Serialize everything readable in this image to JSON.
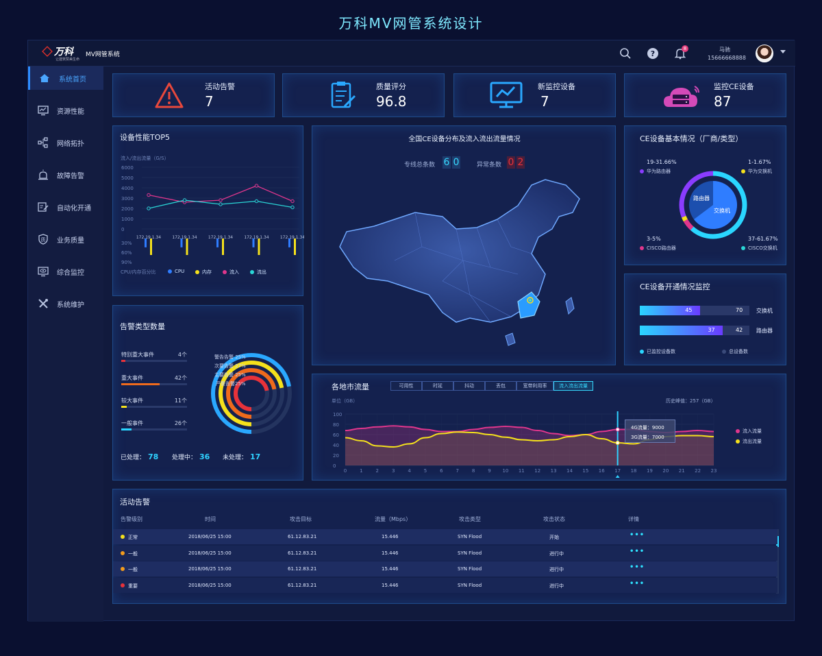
{
  "page_title": "万科MV网管系统设计",
  "header": {
    "logo_text": "万科",
    "logo_sub": "让建筑赞美生命",
    "app_name": "MV网管系统",
    "search_icon": "search-icon",
    "help_icon": "help-icon",
    "bell_icon": "bell-icon",
    "bell_badge": "8",
    "user_name": "马驰",
    "user_phone": "15666668888"
  },
  "sidebar": {
    "items": [
      {
        "label": "系统首页",
        "icon": "home-icon"
      },
      {
        "label": "资源性能",
        "icon": "monitor-icon"
      },
      {
        "label": "网络拓扑",
        "icon": "topology-icon"
      },
      {
        "label": "故障告警",
        "icon": "alarm-icon"
      },
      {
        "label": "自动化开通",
        "icon": "edit-icon"
      },
      {
        "label": "业务质量",
        "icon": "shield-icon"
      },
      {
        "label": "综合监控",
        "icon": "eye-monitor-icon"
      },
      {
        "label": "系统维护",
        "icon": "tools-icon"
      }
    ]
  },
  "kpis": [
    {
      "label": "活动告警",
      "value": "7",
      "icon": "warning-icon",
      "color": "#e8483c"
    },
    {
      "label": "质量评分",
      "value": "96.8",
      "icon": "clipboard-icon",
      "color": "#2aa8ff"
    },
    {
      "label": "新监控设备",
      "value": "7",
      "icon": "monitor-chart-icon",
      "color": "#2aa8ff"
    },
    {
      "label": "监控CE设备",
      "value": "87",
      "icon": "cloud-server-icon",
      "color": "#d44ab8"
    }
  ],
  "perf_top5": {
    "title": "设备性能TOP5",
    "unit_label": "流入/流出流量（G/S）",
    "cpu_axis_label": "CPU/内存百分比",
    "legend": [
      "CPU",
      "内存",
      "流入",
      "流出"
    ],
    "legend_colors": [
      "#2f7dff",
      "#f5e11c",
      "#e0368c",
      "#2ad6d6"
    ],
    "chart_data": {
      "type": "line",
      "categories": [
        "172.19.1.34",
        "172.19.1.34",
        "172.19.1.34",
        "172.19.1.34",
        "172.19.1.34"
      ],
      "ylim": [
        0,
        6000
      ],
      "yticks": [
        "6000",
        "5000",
        "4000",
        "3000",
        "2000",
        "1000",
        "0"
      ],
      "pct_ticks": [
        "30%",
        "60%",
        "90%"
      ],
      "series": [
        {
          "name": "流入",
          "values": [
            3300,
            2600,
            2800,
            4200,
            2700
          ]
        },
        {
          "name": "流出",
          "values": [
            2000,
            2800,
            2400,
            2700,
            2100
          ]
        }
      ],
      "bars": [
        {
          "name": "CPU",
          "values": [
            0.4,
            0.4,
            0.4,
            0.4,
            0.4
          ]
        },
        {
          "name": "内存",
          "values": [
            0.75,
            0.75,
            0.75,
            0.75,
            0.75
          ]
        }
      ]
    }
  },
  "alarm_types": {
    "title": "告警类型数量",
    "rows": [
      {
        "label": "特别重大事件",
        "count": "4个",
        "value": 0.06,
        "color": "#e8323a"
      },
      {
        "label": "重大事件",
        "count": "42个",
        "value": 0.58,
        "color": "#ef6a1c"
      },
      {
        "label": "较大事件",
        "count": "11个",
        "value": 0.08,
        "color": "#f5e11c"
      },
      {
        "label": "一般事件",
        "count": "26个",
        "value": 0.16,
        "color": "#2ad6ff"
      }
    ],
    "ring_labels": [
      "警告告警 25%",
      "次要告警 27%",
      "主要告警 25%",
      "严重告警25%"
    ],
    "ring_colors": [
      "#2aa8ff",
      "#f5e11c",
      "#ef6a1c",
      "#e8323a"
    ],
    "ring_values": [
      0.25,
      0.27,
      0.25,
      0.25
    ],
    "stats": [
      {
        "label": "已处理：",
        "value": "78"
      },
      {
        "label": "处理中：",
        "value": "36"
      },
      {
        "label": "未处理：",
        "value": "17"
      }
    ]
  },
  "map": {
    "title": "全国CE设备分布及流入流出流量情况",
    "line_count_label": "专线总条数",
    "line_count": [
      "6",
      "0"
    ],
    "abnormal_label": "异常条数",
    "abnormal_count": [
      "0",
      "2"
    ]
  },
  "ce_basic": {
    "title": "CE设备基本情况（厂商/类型）",
    "labels": [
      {
        "value": "19-31.66%",
        "name": "华为路由器",
        "color": "#8a3cff"
      },
      {
        "value": "1-1.67%",
        "name": "华为交换机",
        "color": "#f5e11c"
      },
      {
        "value": "3-5%",
        "name": "CISCO路由器",
        "color": "#e0368c"
      },
      {
        "value": "37-61.67%",
        "name": "CISCO交换机",
        "color": "#2ad6d6"
      }
    ],
    "inner_labels": [
      "路由器",
      "交换机"
    ]
  },
  "ce_open": {
    "title": "CE设备开通情况监控",
    "rows": [
      {
        "name": "交换机",
        "open": "45",
        "total": "70",
        "value": 0.64
      },
      {
        "name": "路由器",
        "open": "37",
        "total": "42",
        "value": 0.88
      }
    ],
    "legend": [
      "已监控设备数",
      "总设备数"
    ]
  },
  "traffic": {
    "title": "各地市流量",
    "tabs": [
      "可用性",
      "时延",
      "抖动",
      "丢包",
      "宽带利用率",
      "流入流出流量"
    ],
    "active_tab": 5,
    "unit": "单位（GB）",
    "peak": "历史峰值：257（GB）",
    "tooltip": [
      "4G流量：9000",
      "3G流量：7000"
    ],
    "legend": [
      "流入流量",
      "流出流量"
    ],
    "chart_data": {
      "type": "line",
      "x": [
        "0",
        "1",
        "2",
        "3",
        "4",
        "5",
        "6",
        "7",
        "8",
        "9",
        "10",
        "11",
        "12",
        "13",
        "14",
        "15",
        "16",
        "17",
        "18",
        "19",
        "20",
        "21",
        "22",
        "23"
      ],
      "ylim": [
        0,
        100
      ],
      "yticks": [
        "100",
        "80",
        "60",
        "40",
        "20",
        "0"
      ],
      "series": [
        {
          "name": "流入流量",
          "values": [
            68,
            72,
            75,
            77,
            75,
            70,
            66,
            66,
            70,
            74,
            76,
            74,
            68,
            62,
            58,
            60,
            66,
            70,
            70,
            66,
            64,
            66,
            68,
            66
          ]
        },
        {
          "name": "流出流量",
          "values": [
            54,
            48,
            38,
            36,
            42,
            54,
            62,
            65,
            64,
            60,
            55,
            50,
            48,
            50,
            56,
            60,
            52,
            44,
            42,
            50,
            56,
            58,
            58,
            56
          ]
        }
      ],
      "highlight_x": 17
    }
  },
  "active_alarms": {
    "title": "活动告警",
    "headers": [
      "告警级别",
      "时间",
      "攻击目标",
      "流量（Mbps）",
      "攻击类型",
      "攻击状态",
      "详情"
    ],
    "rows": [
      {
        "level": "正常",
        "color": "#f5e11c",
        "time": "2018/06/25 15:00",
        "target": "61.12.83.21",
        "flow": "15.446",
        "type": "SYN Flood",
        "status": "开始",
        "detail": "•••"
      },
      {
        "level": "一般",
        "color": "#f39c1c",
        "time": "2018/06/25 15:00",
        "target": "61.12.83.21",
        "flow": "15.446",
        "type": "SYN Flood",
        "status": "进行中",
        "detail": "•••"
      },
      {
        "level": "一般",
        "color": "#f39c1c",
        "time": "2018/06/25 15:00",
        "target": "61.12.83.21",
        "flow": "15.446",
        "type": "SYN Flood",
        "status": "进行中",
        "detail": "•••"
      },
      {
        "level": "重要",
        "color": "#e8323a",
        "time": "2018/06/25 15:00",
        "target": "61.12.83.21",
        "flow": "15.446",
        "type": "SYN Flood",
        "status": "进行中",
        "detail": "•••"
      }
    ]
  }
}
